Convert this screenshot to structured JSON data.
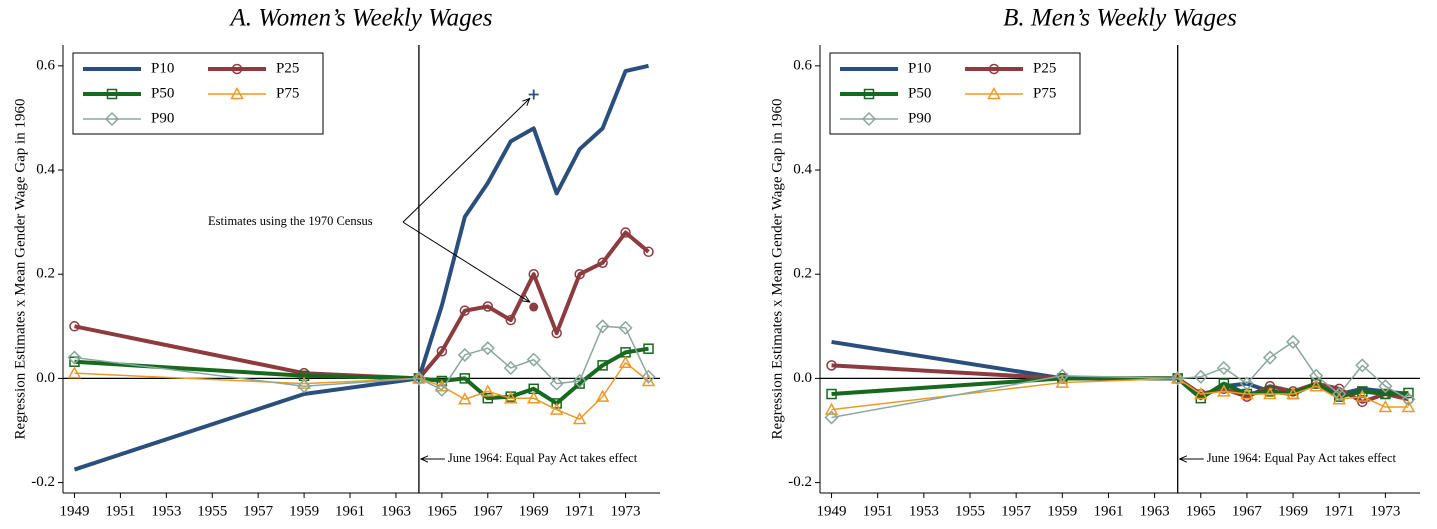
{
  "chart_data": [
    {
      "type": "line",
      "title": "A.   Women’s Weekly Wages",
      "ylabel": "Regression Estimates x Mean Gender Wage Gap in 1960",
      "x": [
        1949,
        1959,
        1964,
        1965,
        1966,
        1967,
        1968,
        1969,
        1970,
        1971,
        1972,
        1973,
        1974
      ],
      "xlim": [
        1948.5,
        1974.5
      ],
      "xticks": [
        1949,
        1951,
        1953,
        1955,
        1957,
        1959,
        1961,
        1963,
        1965,
        1967,
        1969,
        1971,
        1973
      ],
      "ylim": [
        -0.22,
        0.64
      ],
      "yticks": [
        -0.2,
        {
          "value": 0,
          "label": "0.0"
        },
        0.2,
        0.4,
        0.6
      ],
      "legend": "top-left",
      "series": [
        {
          "name": "P10",
          "color": "#2b4f7c",
          "line_width": 4,
          "marker": null,
          "values": [
            -0.175,
            -0.03,
            0,
            0.14,
            0.31,
            0.375,
            0.455,
            0.48,
            0.355,
            0.44,
            0.48,
            0.59,
            0.6
          ]
        },
        {
          "name": "P25",
          "color": "#8e3b3f",
          "line_width": 4,
          "marker": "circle",
          "values": [
            0.1,
            0.01,
            0,
            0.052,
            0.13,
            0.138,
            0.112,
            0.2,
            0.087,
            0.2,
            0.222,
            0.28,
            0.243
          ]
        },
        {
          "name": "P50",
          "color": "#17691e",
          "line_width": 4,
          "marker": "square",
          "values": [
            0.032,
            0.005,
            0,
            -0.005,
            0,
            -0.038,
            -0.035,
            -0.02,
            -0.048,
            -0.01,
            0.025,
            0.05,
            0.057
          ]
        },
        {
          "name": "P75",
          "color": "#eb9a27",
          "line_width": 1.5,
          "marker": "triangle",
          "values": [
            0.01,
            -0.01,
            0,
            -0.015,
            -0.04,
            -0.025,
            -0.038,
            -0.038,
            -0.06,
            -0.078,
            -0.035,
            0.03,
            -0.005
          ]
        },
        {
          "name": "P90",
          "color": "#8aa89c",
          "line_width": 1.5,
          "marker": "diamond",
          "values": [
            0.04,
            -0.015,
            0,
            -0.022,
            0.045,
            0.058,
            0.02,
            0.036,
            -0.01,
            -0.005,
            0.1,
            0.097,
            0.003
          ]
        }
      ],
      "event": {
        "x": 1964,
        "label": "June 1964: Equal Pay Act takes effect"
      },
      "census": {
        "label": "Estimates using the 1970 Census",
        "x": [
          1969,
          1969
        ],
        "y": [
          0.545,
          0.137
        ],
        "colors": [
          "#2b4f7c",
          "#8e3b3f"
        ]
      }
    },
    {
      "type": "line",
      "title": "B.   Men’s Weekly Wages",
      "ylabel": "Regression Estimates x Mean Gender Wage Gap in 1960",
      "x": [
        1949,
        1959,
        1964,
        1965,
        1966,
        1967,
        1968,
        1969,
        1970,
        1971,
        1972,
        1973,
        1974
      ],
      "xlim": [
        1948.5,
        1974.5
      ],
      "xticks": [
        1949,
        1951,
        1953,
        1955,
        1957,
        1959,
        1961,
        1963,
        1965,
        1967,
        1969,
        1971,
        1973
      ],
      "ylim": [
        -0.22,
        0.64
      ],
      "yticks": [
        -0.2,
        {
          "value": 0,
          "label": "0.0"
        },
        0.2,
        0.4,
        0.6
      ],
      "legend": "top-left",
      "series": [
        {
          "name": "P10",
          "color": "#2b4f7c",
          "line_width": 4,
          "marker": null,
          "values": [
            0.07,
            0,
            0,
            -0.035,
            -0.015,
            -0.01,
            -0.025,
            -0.03,
            -0.01,
            -0.03,
            -0.02,
            -0.025,
            -0.03
          ]
        },
        {
          "name": "P25",
          "color": "#8e3b3f",
          "line_width": 4,
          "marker": "circle",
          "values": [
            0.025,
            0,
            0,
            -0.03,
            -0.02,
            -0.035,
            -0.015,
            -0.025,
            -0.01,
            -0.02,
            -0.045,
            -0.03,
            -0.04
          ]
        },
        {
          "name": "P50",
          "color": "#17691e",
          "line_width": 4,
          "marker": "square",
          "values": [
            -0.03,
            0,
            0,
            -0.038,
            -0.01,
            -0.03,
            -0.025,
            -0.03,
            -0.01,
            -0.035,
            -0.025,
            -0.03,
            -0.028
          ]
        },
        {
          "name": "P75",
          "color": "#eb9a27",
          "line_width": 1.5,
          "marker": "triangle",
          "values": [
            -0.06,
            -0.008,
            0,
            -0.03,
            -0.025,
            -0.03,
            -0.03,
            -0.03,
            -0.015,
            -0.04,
            -0.035,
            -0.055,
            -0.055
          ]
        },
        {
          "name": "P90",
          "color": "#8aa89c",
          "line_width": 1.5,
          "marker": "diamond",
          "values": [
            -0.075,
            0.005,
            0,
            0.003,
            0.02,
            -0.01,
            0.04,
            0.07,
            0.005,
            -0.03,
            0.025,
            -0.015,
            -0.04
          ]
        }
      ],
      "event": {
        "x": 1964,
        "label": "June 1964: Equal Pay Act takes effect"
      }
    }
  ]
}
